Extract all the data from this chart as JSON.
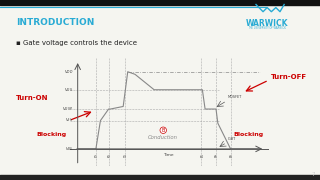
{
  "title": "INTRODUCTION",
  "title_color": "#29ABD4",
  "bg_color": "#F5F5F0",
  "bullet_text": "Gate voltage controls the device",
  "warwick_color": "#29ABD4",
  "turn_on_label": "Turn-ON",
  "turn_off_label": "Turn-OFF",
  "blocking_left_label": "Blocking",
  "blocking_right_label": "Blocking",
  "conduction_label": "Conduction",
  "time_label": "Time",
  "mosfet_label": "MOSFET",
  "igbt_label": "IGBT",
  "label_color": "#CC0000",
  "top_bar_color": "#000000",
  "bottom_bar_color": "#222222",
  "line_color": "#888888",
  "ref_line_color": "#aaaaaa",
  "page_num": "7",
  "V_dd": 1.28,
  "V_on": 1.0,
  "V_gsp": 0.7,
  "V_th": 0.52,
  "V_off": 0.08,
  "V_neg": -0.18,
  "t1": 0.1,
  "t2": 0.17,
  "t3": 0.26,
  "t4": 0.68,
  "t5": 0.76,
  "t6": 0.84
}
